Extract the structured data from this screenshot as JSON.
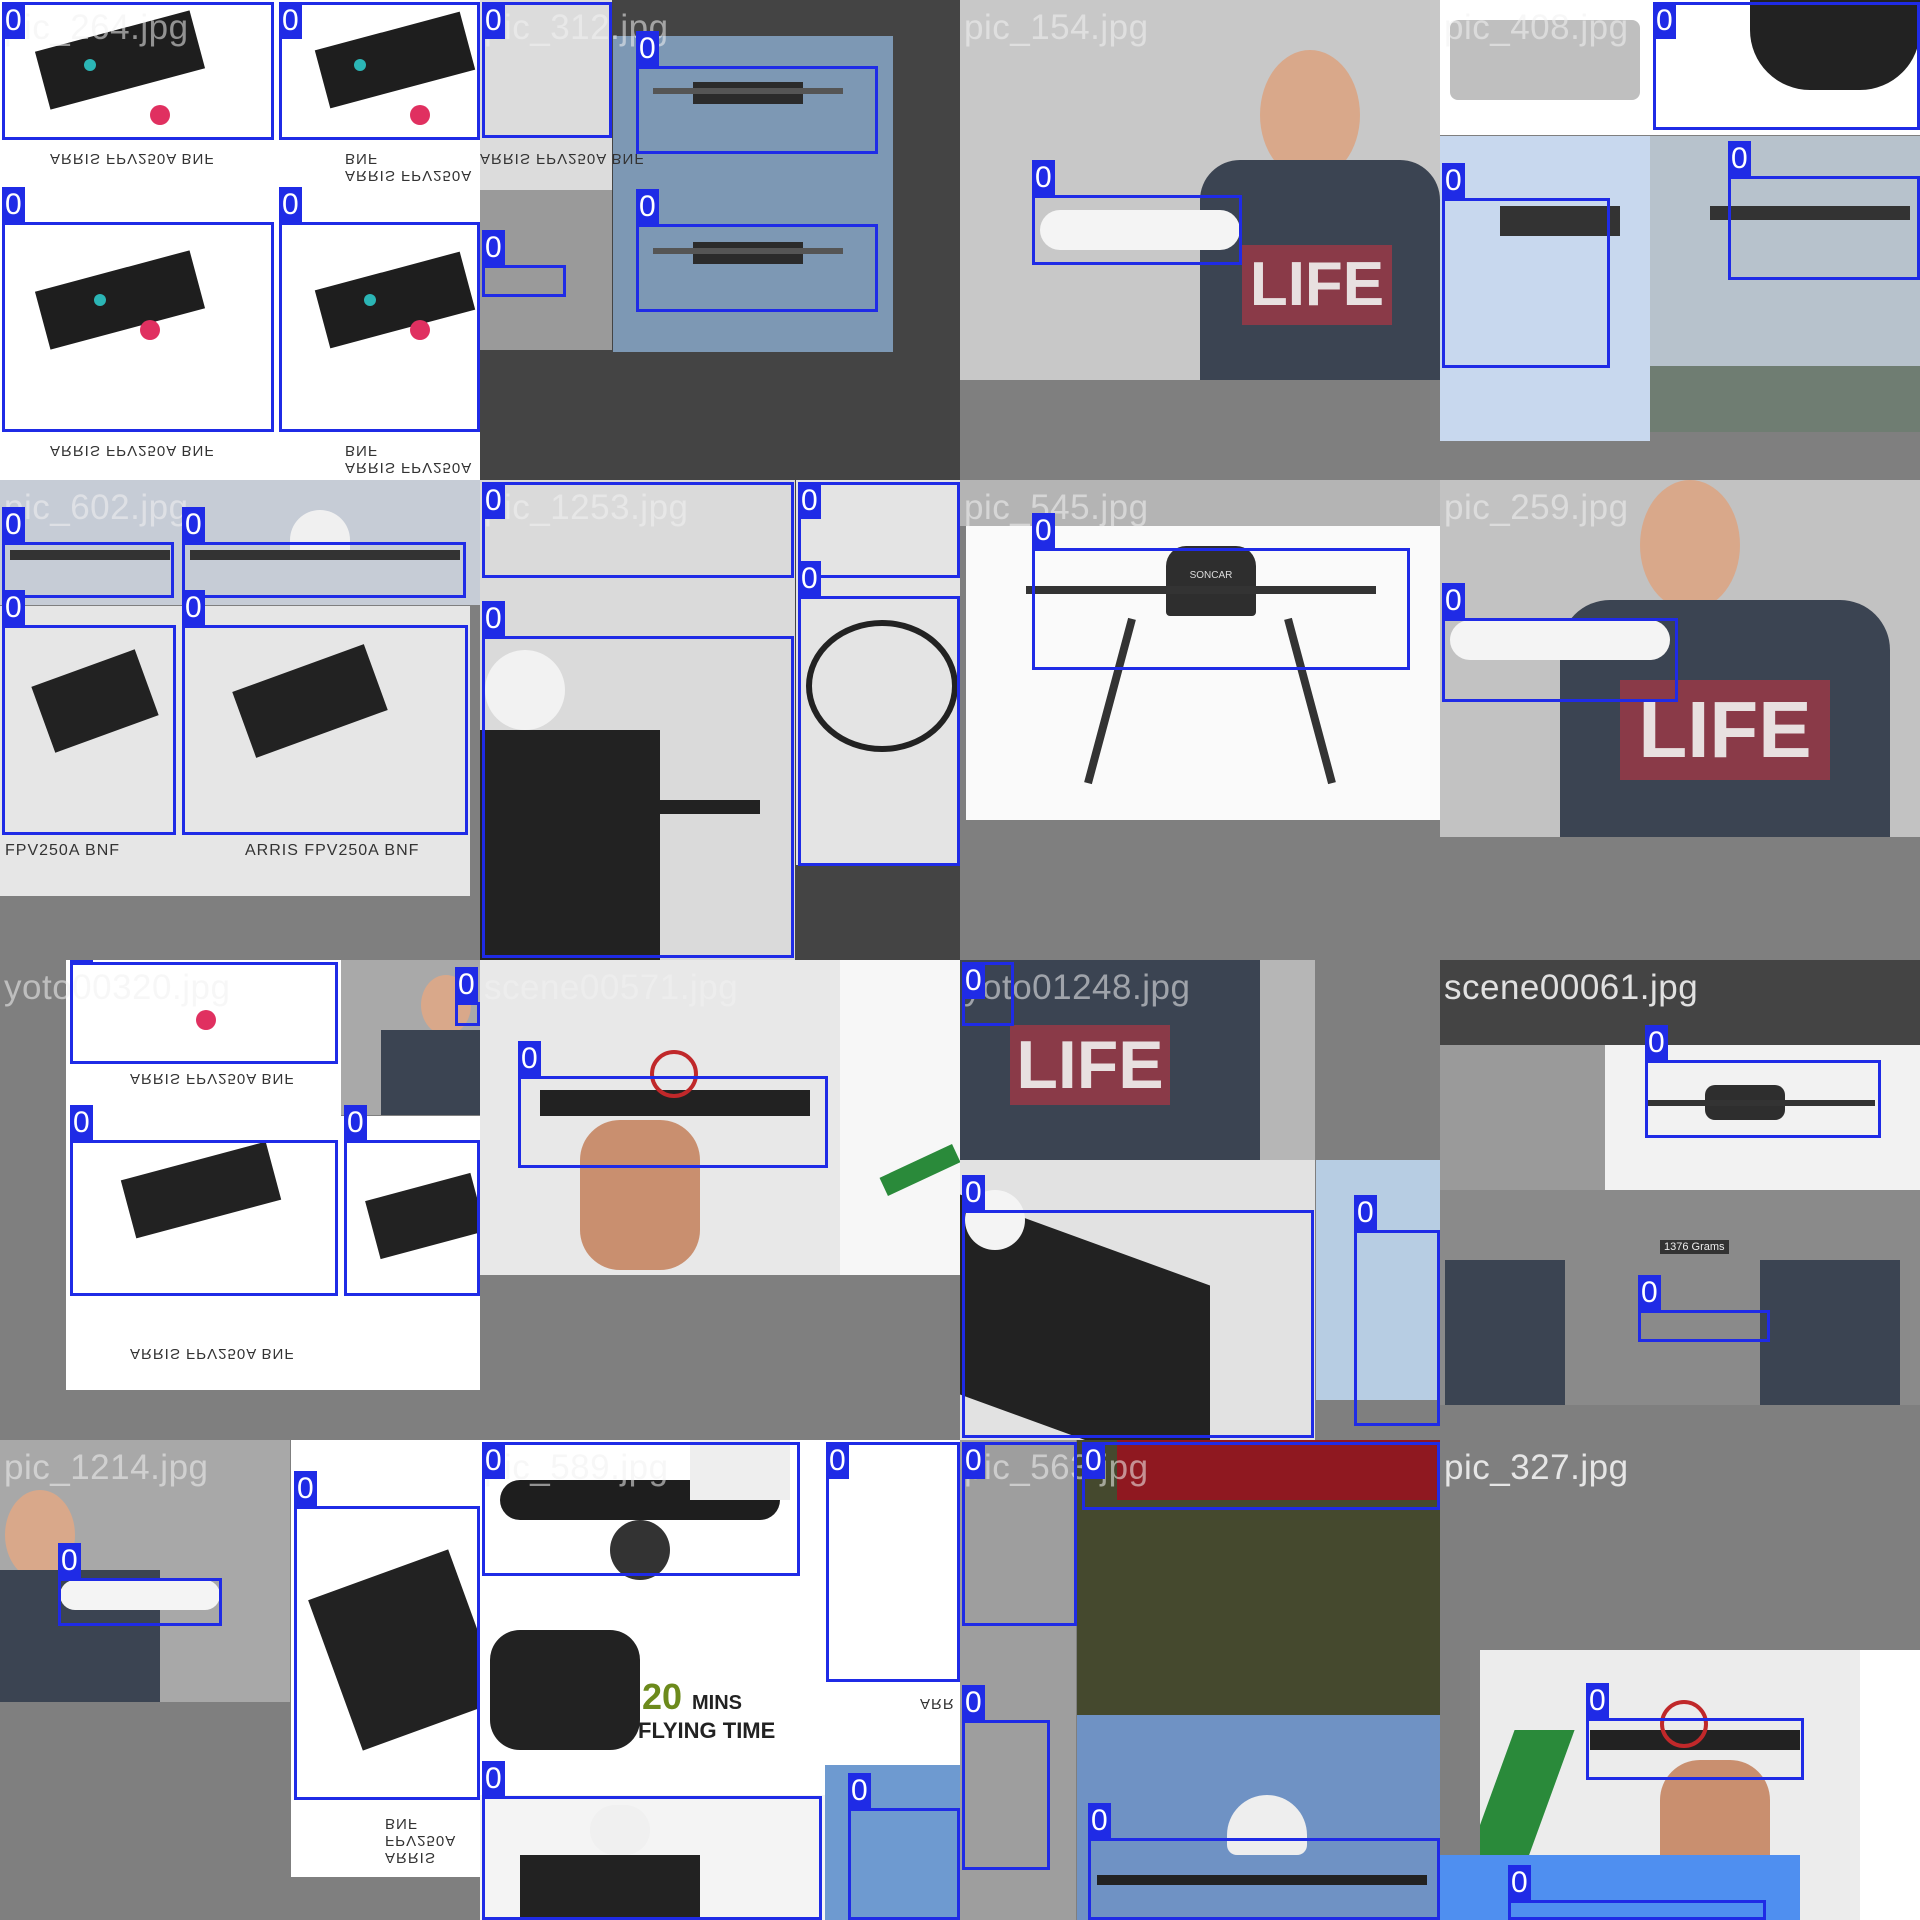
{
  "mosaic": {
    "class_label": "0",
    "box_color": "#1f2be6",
    "tiles": [
      {
        "file": "pic_264.jpg"
      },
      {
        "file": "pic_312.jpg"
      },
      {
        "file": "pic_154.jpg"
      },
      {
        "file": "pic_408.jpg"
      },
      {
        "file": "pic_602.jpg"
      },
      {
        "file": "pic_1253.jpg"
      },
      {
        "file": "pic_545.jpg"
      },
      {
        "file": "pic_259.jpg"
      },
      {
        "file": "yoto00320.jpg"
      },
      {
        "file": "scene00571.jpg"
      },
      {
        "file": "yoto01248.jpg"
      },
      {
        "file": "scene00061.jpg"
      },
      {
        "file": "pic_1214.jpg"
      },
      {
        "file": "pic_589.jpg"
      },
      {
        "file": "pic_563.jpg"
      },
      {
        "file": "pic_327.jpg"
      }
    ]
  },
  "texts": {
    "arris_mirror": "ARRIS FPV250A BNF",
    "arris": "ARRIS FPV250A BNF",
    "fpv": "FPV250A BNF",
    "life": "LIFE",
    "sonicar": "SONCAR",
    "grams": "1376 Grams",
    "mins_num": "20",
    "mins_word": "MINS",
    "flying_time": "FLYING TIME",
    "arr": "ARR"
  }
}
